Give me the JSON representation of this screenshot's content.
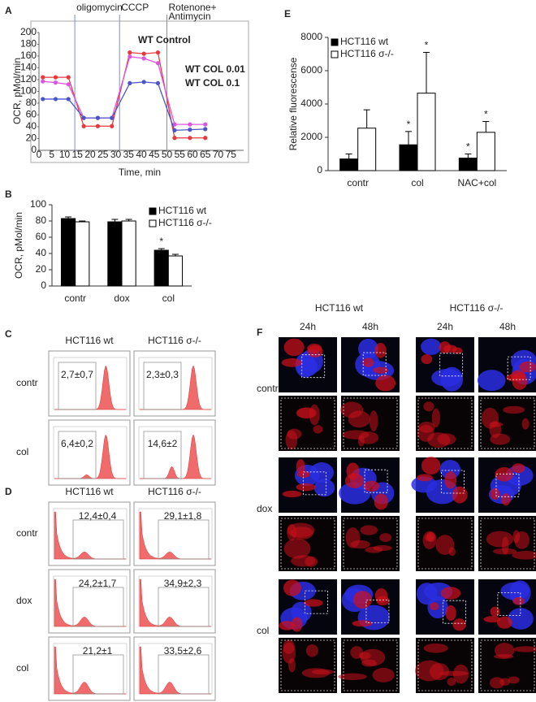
{
  "chart_data": [
    {
      "type": "line",
      "panel_label": "A",
      "xlabel": "Time, min",
      "ylabel": "OCR, pMol/min",
      "x": [
        1.5,
        6.5,
        11.5,
        17.5,
        23,
        28.5,
        35.5,
        41,
        46.5,
        53,
        59,
        65
      ],
      "series": [
        {
          "name": "WT Control",
          "color": "#e8383d",
          "values": [
            124,
            124,
            124,
            41,
            41,
            41,
            166,
            164,
            166,
            21,
            21,
            21
          ]
        },
        {
          "name": "WT COL 0.01",
          "color": "#dd55dd",
          "values": [
            117,
            115,
            112,
            55,
            55,
            55,
            159,
            156,
            148,
            44,
            44,
            44
          ]
        },
        {
          "name": "WT COL 0.1",
          "color": "#4a56c8",
          "values": [
            87,
            87,
            87,
            55,
            55,
            55,
            114,
            116,
            114,
            34,
            35,
            36
          ]
        }
      ],
      "annotations": [
        {
          "x": 14,
          "text": [
            "oligomycin"
          ]
        },
        {
          "x": 31.5,
          "text": [
            "CCCP"
          ]
        },
        {
          "x": 50,
          "text": [
            "Rotenone+",
            "Antimycin"
          ]
        }
      ],
      "xlim": [
        0,
        80
      ],
      "xticks": [
        0,
        5,
        10,
        15,
        20,
        25,
        30,
        35,
        40,
        45,
        50,
        55,
        60,
        65,
        70,
        75
      ],
      "ylim": [
        0,
        200
      ],
      "yticks": [
        0,
        20,
        40,
        60,
        80,
        100,
        120,
        140,
        160,
        180,
        200
      ]
    },
    {
      "type": "bar",
      "panel_label": "B",
      "ylabel": "OCR, pMol/min",
      "categories": [
        "contr",
        "dox",
        "col"
      ],
      "series": [
        {
          "name": "HCT116 wt",
          "color": "#000000",
          "values": [
            83,
            79,
            44
          ],
          "errors": [
            2,
            3,
            2
          ],
          "annotations": [
            null,
            null,
            "*"
          ]
        },
        {
          "name": "HCT116 σ-/-",
          "color": "#ffffff",
          "values": [
            79,
            80,
            37
          ],
          "errors": [
            1,
            2,
            2
          ],
          "annotations": [
            null,
            null,
            null
          ]
        }
      ],
      "ylim": [
        0,
        100
      ],
      "yticks": [
        0,
        20,
        40,
        60,
        80,
        100
      ]
    },
    {
      "type": "bar",
      "panel_label": "E",
      "ylabel": "Relative fluorescense",
      "categories": [
        "contr",
        "col",
        "NAC+col"
      ],
      "series": [
        {
          "name": "HCT116 wt",
          "color": "#000000",
          "values": [
            700,
            1550,
            750
          ],
          "errors": [
            300,
            800,
            250
          ],
          "annotations": [
            null,
            "*",
            "*"
          ]
        },
        {
          "name": "HCT116 σ-/-",
          "color": "#ffffff",
          "values": [
            2550,
            4650,
            2300
          ],
          "errors": [
            1100,
            2450,
            650
          ],
          "annotations": [
            null,
            "*",
            "*"
          ]
        }
      ],
      "ylim": [
        0,
        8000
      ],
      "yticks": [
        0,
        2000,
        4000,
        6000,
        8000
      ]
    }
  ],
  "flow_c": {
    "panel_label": "C",
    "columns": [
      "HCT116 wt",
      "HCT116 σ-/-"
    ],
    "rows": [
      {
        "label": "contr",
        "values": [
          "2,7±0,7",
          "2,3±0,3"
        ]
      },
      {
        "label": "col",
        "values": [
          "6,4±0,2",
          "14,6±2"
        ]
      }
    ]
  },
  "flow_d": {
    "panel_label": "D",
    "columns": [
      "HCT116 wt",
      "HCT116 σ-/-"
    ],
    "rows": [
      {
        "label": "contr",
        "values": [
          "12,4±0,4",
          "29,1±1,8"
        ]
      },
      {
        "label": "dox",
        "values": [
          "24,2±1,7",
          "34,9±2,3"
        ]
      },
      {
        "label": "col",
        "values": [
          "21,2±1",
          "33,5±2,6"
        ]
      }
    ]
  },
  "microscopy_f": {
    "panel_label": "F",
    "groups": [
      {
        "name": "HCT116 wt",
        "times": [
          "24h",
          "48h"
        ]
      },
      {
        "name": "HCT116 σ-/-",
        "times": [
          "24h",
          "48h"
        ]
      }
    ],
    "rows": [
      "contr",
      "dox",
      "col"
    ]
  }
}
